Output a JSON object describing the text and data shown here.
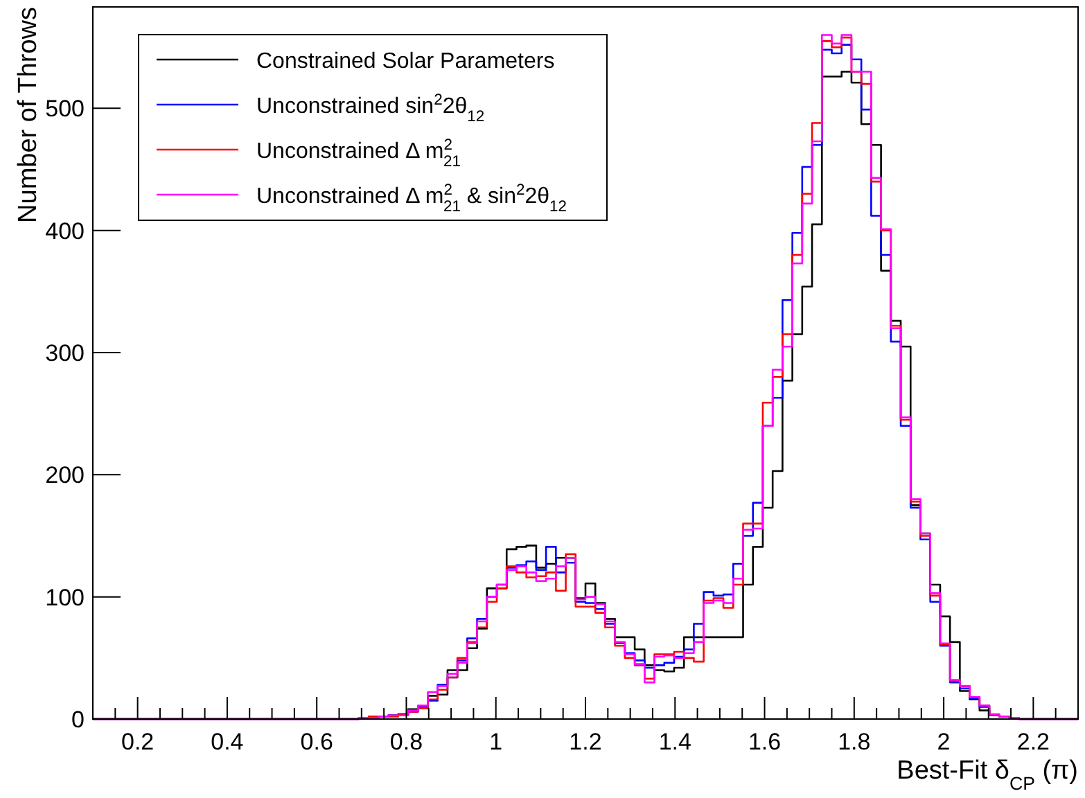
{
  "chart_data": {
    "type": "histogram",
    "xlabel": "Best-Fit δ$_{CP}$ (π)",
    "ylabel": "Number of Throws",
    "xlim": [
      0.1,
      2.3
    ],
    "ylim": [
      0,
      583
    ],
    "xticks": [
      {
        "value": 0.15,
        "label": null
      },
      0.2,
      {
        "value": 0.25,
        "label": null
      },
      {
        "value": 0.3,
        "label": null
      },
      {
        "value": 0.35,
        "label": null
      },
      0.4,
      {
        "value": 0.45,
        "label": null
      },
      {
        "value": 0.5,
        "label": null
      },
      {
        "value": 0.55,
        "label": null
      },
      0.6,
      {
        "value": 0.65,
        "label": null
      },
      {
        "value": 0.7,
        "label": null
      },
      {
        "value": 0.75,
        "label": null
      },
      0.8,
      {
        "value": 0.85,
        "label": null
      },
      {
        "value": 0.9,
        "label": null
      },
      {
        "value": 0.95,
        "label": null
      },
      1,
      {
        "value": 1.05,
        "label": null
      },
      {
        "value": 1.1,
        "label": null
      },
      {
        "value": 1.15,
        "label": null
      },
      1.2,
      {
        "value": 1.25,
        "label": null
      },
      {
        "value": 1.3,
        "label": null
      },
      {
        "value": 1.35,
        "label": null
      },
      1.4,
      {
        "value": 1.45,
        "label": null
      },
      {
        "value": 1.5,
        "label": null
      },
      {
        "value": 1.55,
        "label": null
      },
      1.6,
      {
        "value": 1.65,
        "label": null
      },
      {
        "value": 1.7,
        "label": null
      },
      {
        "value": 1.75,
        "label": null
      },
      1.8,
      {
        "value": 1.85,
        "label": null
      },
      {
        "value": 1.9,
        "label": null
      },
      {
        "value": 1.95,
        "label": null
      },
      2,
      {
        "value": 2.05,
        "label": null
      },
      {
        "value": 2.1,
        "label": null
      },
      {
        "value": 2.15,
        "label": null
      },
      2.2,
      {
        "value": 2.25,
        "label": null
      }
    ],
    "yticks": [
      0,
      100,
      200,
      300,
      400,
      500
    ],
    "bins": [
      0.1,
      0.122,
      0.144,
      0.166,
      0.188,
      0.21,
      0.232,
      0.254,
      0.276,
      0.298,
      0.32,
      0.342,
      0.364,
      0.386,
      0.408,
      0.43,
      0.452,
      0.474,
      0.496,
      0.518,
      0.54,
      0.562,
      0.584,
      0.606,
      0.628,
      0.65,
      0.672,
      0.694,
      0.716,
      0.738,
      0.76,
      0.782,
      0.804,
      0.826,
      0.848,
      0.87,
      0.892,
      0.914,
      0.936,
      0.958,
      0.98,
      1.002,
      1.024,
      1.046,
      1.068,
      1.09,
      1.112,
      1.134,
      1.156,
      1.178,
      1.2,
      1.222,
      1.244,
      1.266,
      1.288,
      1.31,
      1.332,
      1.354,
      1.376,
      1.398,
      1.42,
      1.442,
      1.464,
      1.486,
      1.508,
      1.53,
      1.552,
      1.574,
      1.596,
      1.618,
      1.64,
      1.662,
      1.684,
      1.706,
      1.728,
      1.75,
      1.772,
      1.794,
      1.816,
      1.838,
      1.86,
      1.882,
      1.904,
      1.926,
      1.948,
      1.97,
      1.992,
      2.014,
      2.036,
      2.058,
      2.08,
      2.102,
      2.124,
      2.146,
      2.168,
      2.19,
      2.212,
      2.234,
      2.256,
      2.278,
      2.3
    ],
    "series": [
      {
        "name": "Constrained Solar Parameters",
        "color": "#000000",
        "values": [
          0,
          0,
          0,
          0,
          0,
          0,
          0,
          0,
          0,
          0,
          0,
          0,
          0,
          0,
          0,
          0,
          0,
          0,
          0,
          0,
          0,
          0,
          0,
          0,
          0,
          0,
          0,
          1,
          2,
          2,
          3,
          4,
          8,
          9,
          19,
          20,
          40,
          40,
          58,
          74,
          107,
          107,
          139,
          141,
          142,
          124,
          127,
          132,
          132,
          99,
          111,
          95,
          82,
          67,
          67,
          57,
          44,
          40,
          39,
          42,
          67,
          67,
          67,
          67,
          67,
          67,
          110,
          141,
          173,
          203,
          277,
          315,
          354,
          405,
          526,
          526,
          530,
          521,
          487,
          470,
          367,
          326,
          305,
          175,
          152,
          110,
          84,
          63,
          23,
          16,
          7,
          3,
          2,
          1,
          0,
          0,
          0,
          0,
          0,
          0
        ]
      },
      {
        "name": "Unconstrained sin$^{2}$2θ$_{12}$",
        "color": "#0000ff",
        "values": [
          0,
          0,
          0,
          0,
          0,
          0,
          0,
          0,
          0,
          0,
          0,
          0,
          0,
          0,
          0,
          0,
          0,
          0,
          0,
          0,
          0,
          0,
          0,
          0,
          0,
          0,
          0,
          1,
          1,
          2,
          3,
          4,
          6,
          10,
          15,
          28,
          34,
          48,
          66,
          82,
          100,
          110,
          124,
          126,
          129,
          122,
          141,
          120,
          128,
          96,
          95,
          90,
          78,
          62,
          54,
          48,
          42,
          44,
          46,
          51,
          57,
          78,
          104,
          101,
          102,
          127,
          150,
          177,
          240,
          263,
          343,
          398,
          452,
          470,
          548,
          545,
          552,
          540,
          499,
          412,
          380,
          309,
          240,
          173,
          147,
          96,
          60,
          30,
          25,
          17,
          10,
          3,
          2,
          1,
          0,
          0,
          0,
          0,
          0,
          0
        ]
      },
      {
        "name": "Unconstrained Δ m$^{2}$$_{21}$",
        "color": "#ff0000",
        "values": [
          0,
          0,
          0,
          0,
          0,
          0,
          0,
          0,
          0,
          0,
          0,
          0,
          0,
          0,
          0,
          0,
          0,
          0,
          0,
          0,
          0,
          0,
          0,
          0,
          0,
          0,
          0,
          1,
          2,
          2,
          2,
          4,
          6,
          9,
          16,
          24,
          34,
          50,
          63,
          75,
          96,
          107,
          125,
          120,
          116,
          117,
          120,
          105,
          135,
          92,
          92,
          87,
          75,
          60,
          50,
          44,
          33,
          53,
          53,
          55,
          50,
          47,
          97,
          99,
          91,
          110,
          160,
          160,
          259,
          280,
          315,
          380,
          430,
          488,
          555,
          550,
          558,
          530,
          520,
          440,
          400,
          322,
          245,
          178,
          150,
          101,
          61,
          31,
          27,
          18,
          11,
          3,
          2,
          1,
          0,
          0,
          0,
          0,
          0,
          0
        ]
      },
      {
        "name": "Unconstrained Δ m$^{2}$$_{21}$ & sin$^{2}$2θ$_{12}$",
        "color": "#ff00ff",
        "values": [
          0,
          0,
          0,
          0,
          0,
          0,
          0,
          0,
          0,
          0,
          0,
          0,
          0,
          0,
          0,
          0,
          0,
          0,
          0,
          0,
          0,
          0,
          0,
          0,
          0,
          0,
          0,
          1,
          1,
          2,
          3,
          3,
          7,
          11,
          22,
          27,
          37,
          46,
          62,
          80,
          100,
          110,
          122,
          125,
          120,
          113,
          115,
          125,
          132,
          98,
          100,
          94,
          80,
          63,
          53,
          45,
          30,
          51,
          52,
          50,
          54,
          63,
          95,
          97,
          95,
          115,
          155,
          156,
          240,
          286,
          305,
          373,
          422,
          473,
          560,
          553,
          560,
          530,
          530,
          443,
          401,
          320,
          247,
          180,
          152,
          103,
          62,
          32,
          27,
          18,
          11,
          4,
          2,
          1,
          0,
          0,
          0,
          0,
          0,
          0
        ]
      }
    ],
    "legend": "top left"
  }
}
